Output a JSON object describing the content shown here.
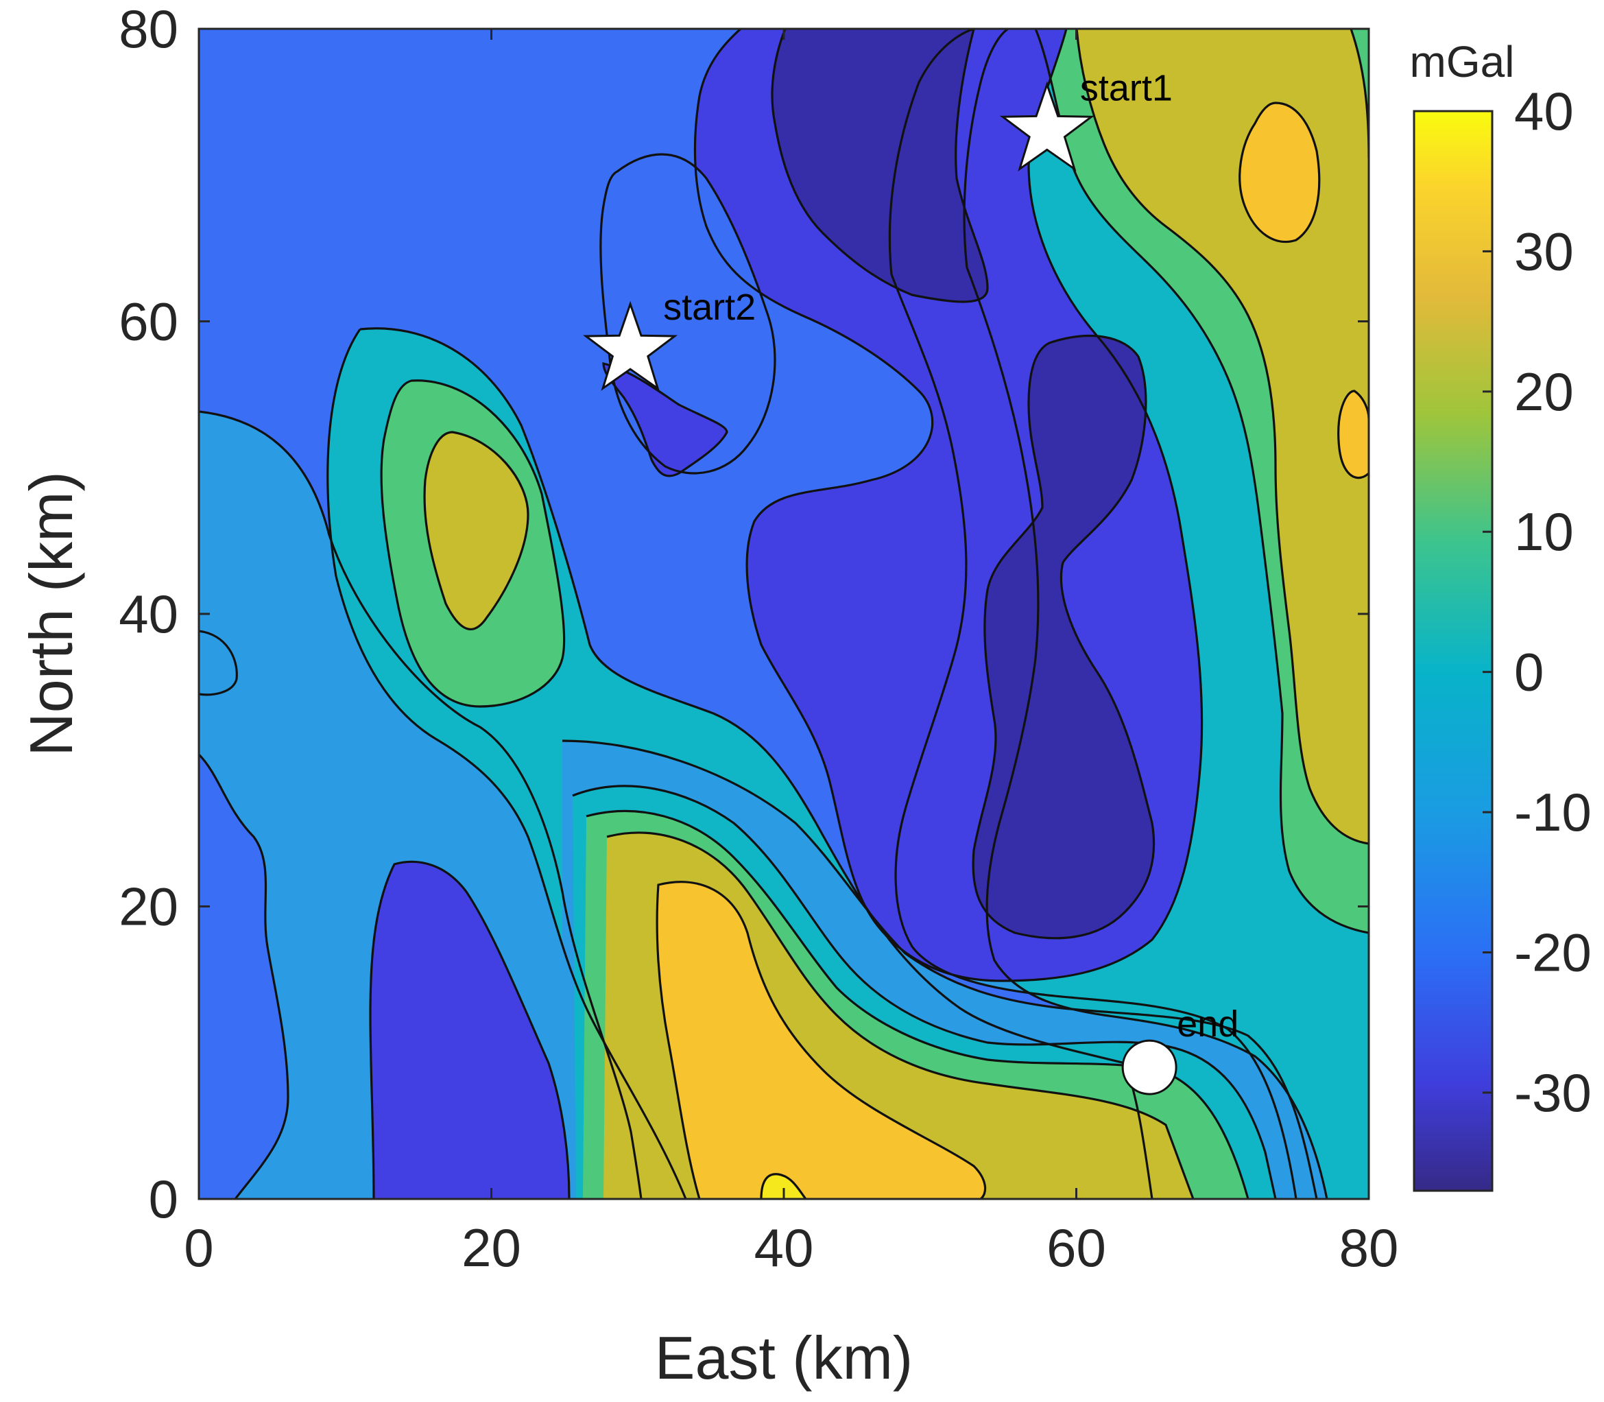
{
  "chart_data": {
    "type": "contourf",
    "xlabel": "East (km)",
    "ylabel": "North (km)",
    "xlim": [
      0,
      80
    ],
    "ylim": [
      0,
      80
    ],
    "xticks": [
      0,
      20,
      40,
      60,
      80
    ],
    "yticks": [
      0,
      20,
      40,
      60,
      80
    ],
    "colorbar": {
      "title": "mGal",
      "range": [
        -37,
        40
      ],
      "ticks": [
        -30,
        -20,
        -10,
        0,
        10,
        20,
        30,
        40
      ],
      "colormap": "parula"
    },
    "grid": false,
    "background_level_color": "#3a6ff5",
    "contour_regions": [
      {
        "id": "west-low-band",
        "color": "#2b9be3"
      },
      {
        "id": "west-bulge",
        "color": "#2b9be3"
      },
      {
        "id": "ridge-0",
        "color": "#10b6c6"
      },
      {
        "id": "ridge-10",
        "color": "#4ec97c"
      },
      {
        "id": "ridge-20",
        "color": "#c7bd2f"
      },
      {
        "id": "south-low-band",
        "color": "#2b9be3"
      },
      {
        "id": "south-0",
        "color": "#10b6c6"
      },
      {
        "id": "south-10",
        "color": "#4ec97c"
      },
      {
        "id": "south-20",
        "color": "#c7bd2f"
      },
      {
        "id": "south-30",
        "color": "#f7c32f"
      },
      {
        "id": "south-40",
        "color": "#f5e91d"
      },
      {
        "id": "east-low-band",
        "color": "#2b9be3"
      },
      {
        "id": "east-0",
        "color": "#10b6c6"
      },
      {
        "id": "east-10",
        "color": "#4ec97c"
      },
      {
        "id": "east-20",
        "color": "#c7bd2f"
      },
      {
        "id": "east-30-north",
        "color": "#f7c32f"
      },
      {
        "id": "east-30-small",
        "color": "#f7c32f"
      },
      {
        "id": "south-west-low",
        "color": "#4240e3"
      },
      {
        "id": "central-low",
        "color": "#4240e3"
      },
      {
        "id": "central-lower-north",
        "color": "#352ea8"
      },
      {
        "id": "central-lower-south",
        "color": "#352ea8"
      },
      {
        "id": "north-lens",
        "color": "#3a6ff5"
      },
      {
        "id": "start2-tongue",
        "color": "#4240e3"
      }
    ],
    "markers": [
      {
        "type": "star",
        "label": "start1",
        "x": 58,
        "y": 73
      },
      {
        "type": "star",
        "label": "start2",
        "x": 29.5,
        "y": 58
      },
      {
        "type": "circle",
        "label": "end",
        "x": 65,
        "y": 9
      }
    ]
  }
}
